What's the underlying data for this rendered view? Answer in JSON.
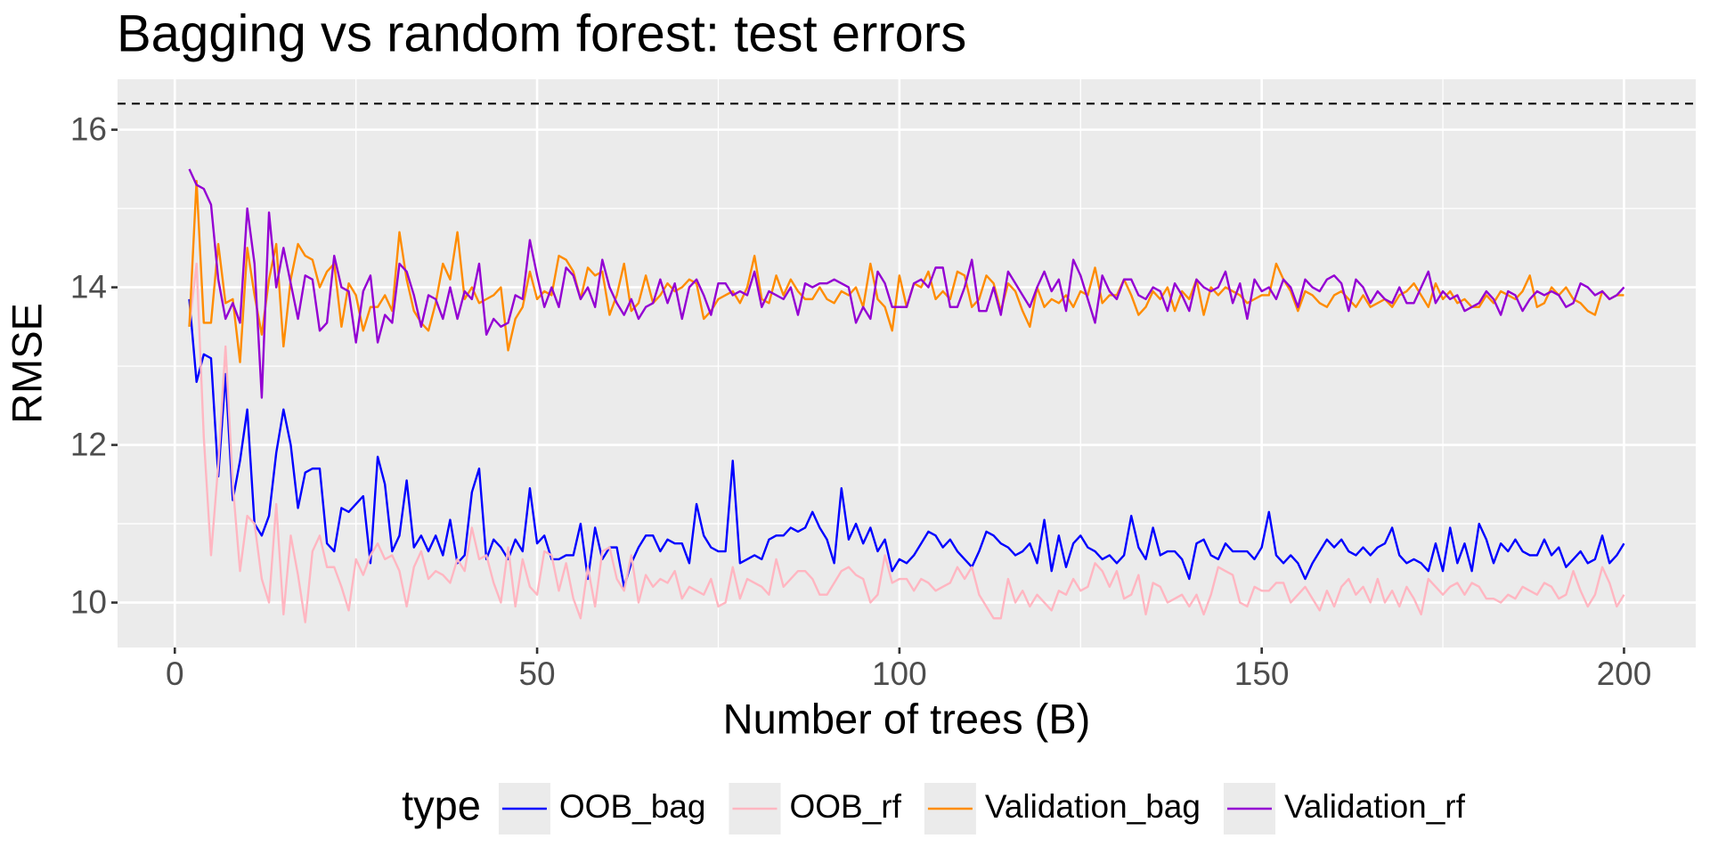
{
  "chart_data": {
    "type": "line",
    "title": "Bagging vs random forest: test errors",
    "xlabel": "Number of trees (B)",
    "ylabel": "RMSE",
    "legend_title": "type",
    "legend_position": "bottom",
    "grid": true,
    "hline": 16.33,
    "xlim": [
      -7.9,
      209.9
    ],
    "ylim": [
      9.43,
      16.64
    ],
    "xticks": [
      0,
      50,
      100,
      150,
      200
    ],
    "yticks": [
      10,
      12,
      14,
      16
    ],
    "x_minor_breaks": [
      25,
      75,
      125,
      175
    ],
    "y_minor_breaks": [
      11,
      13,
      15
    ],
    "x": [
      2,
      3,
      4,
      5,
      6,
      7,
      8,
      9,
      10,
      11,
      12,
      13,
      14,
      15,
      16,
      17,
      18,
      19,
      20,
      21,
      22,
      23,
      24,
      25,
      26,
      27,
      28,
      29,
      30,
      31,
      32,
      33,
      34,
      35,
      36,
      37,
      38,
      39,
      40,
      41,
      42,
      43,
      44,
      45,
      46,
      47,
      48,
      49,
      50,
      51,
      52,
      53,
      54,
      55,
      56,
      57,
      58,
      59,
      60,
      61,
      62,
      63,
      64,
      65,
      66,
      67,
      68,
      69,
      70,
      71,
      72,
      73,
      74,
      75,
      76,
      77,
      78,
      79,
      80,
      81,
      82,
      83,
      84,
      85,
      86,
      87,
      88,
      89,
      90,
      91,
      92,
      93,
      94,
      95,
      96,
      97,
      98,
      99,
      100,
      101,
      102,
      103,
      104,
      105,
      106,
      107,
      108,
      109,
      110,
      111,
      112,
      113,
      114,
      115,
      116,
      117,
      118,
      119,
      120,
      121,
      122,
      123,
      124,
      125,
      126,
      127,
      128,
      129,
      130,
      131,
      132,
      133,
      134,
      135,
      136,
      137,
      138,
      139,
      140,
      141,
      142,
      143,
      144,
      145,
      146,
      147,
      148,
      149,
      150,
      151,
      152,
      153,
      154,
      155,
      156,
      157,
      158,
      159,
      160,
      161,
      162,
      163,
      164,
      165,
      166,
      167,
      168,
      169,
      170,
      171,
      172,
      173,
      174,
      175,
      176,
      177,
      178,
      179,
      180,
      181,
      182,
      183,
      184,
      185,
      186,
      187,
      188,
      189,
      190,
      191,
      192,
      193,
      194,
      195,
      196,
      197,
      198,
      199,
      200
    ],
    "series": [
      {
        "name": "OOB_bag",
        "color": "#0000ff",
        "values": [
          13.85,
          12.8,
          13.15,
          13.1,
          11.6,
          12.9,
          11.3,
          11.8,
          12.45,
          11.0,
          10.85,
          11.1,
          11.9,
          12.45,
          12.0,
          11.2,
          11.65,
          11.7,
          11.7,
          10.75,
          10.65,
          11.2,
          11.15,
          11.25,
          11.35,
          10.5,
          11.85,
          11.5,
          10.65,
          10.85,
          11.55,
          10.7,
          10.85,
          10.65,
          10.85,
          10.6,
          11.05,
          10.5,
          10.6,
          11.4,
          11.7,
          10.55,
          10.8,
          10.7,
          10.55,
          10.8,
          10.65,
          11.45,
          10.75,
          10.85,
          10.55,
          10.55,
          10.6,
          10.6,
          11.0,
          10.3,
          10.95,
          10.55,
          10.7,
          10.7,
          10.2,
          10.5,
          10.7,
          10.85,
          10.85,
          10.65,
          10.8,
          10.75,
          10.75,
          10.5,
          11.25,
          10.85,
          10.7,
          10.65,
          10.65,
          11.8,
          10.5,
          10.55,
          10.6,
          10.55,
          10.8,
          10.85,
          10.85,
          10.95,
          10.9,
          10.95,
          11.15,
          10.95,
          10.8,
          10.5,
          11.45,
          10.8,
          11.0,
          10.75,
          10.95,
          10.65,
          10.8,
          10.4,
          10.55,
          10.5,
          10.6,
          10.75,
          10.9,
          10.85,
          10.7,
          10.8,
          10.65,
          10.55,
          10.45,
          10.65,
          10.9,
          10.85,
          10.75,
          10.7,
          10.6,
          10.65,
          10.75,
          10.5,
          11.05,
          10.4,
          10.85,
          10.45,
          10.75,
          10.85,
          10.7,
          10.65,
          10.55,
          10.6,
          10.5,
          10.6,
          11.1,
          10.7,
          10.55,
          10.95,
          10.6,
          10.65,
          10.65,
          10.55,
          10.3,
          10.75,
          10.8,
          10.6,
          10.55,
          10.75,
          10.65,
          10.65,
          10.65,
          10.55,
          10.7,
          11.15,
          10.6,
          10.5,
          10.6,
          10.5,
          10.3,
          10.5,
          10.65,
          10.8,
          10.7,
          10.8,
          10.65,
          10.6,
          10.7,
          10.6,
          10.7,
          10.75,
          10.95,
          10.6,
          10.5,
          10.55,
          10.5,
          10.4,
          10.75,
          10.4,
          10.95,
          10.5,
          10.75,
          10.4,
          11.0,
          10.8,
          10.5,
          10.75,
          10.65,
          10.8,
          10.65,
          10.6,
          10.6,
          10.8,
          10.6,
          10.7,
          10.45,
          10.55,
          10.65,
          10.5,
          10.55,
          10.85,
          10.5,
          10.6,
          10.75
        ]
      },
      {
        "name": "OOB_rf",
        "color": "#ffb6c1",
        "values": [
          13.5,
          14.3,
          12.1,
          10.6,
          11.75,
          13.25,
          11.5,
          10.4,
          11.1,
          11.0,
          10.3,
          10.0,
          11.25,
          9.85,
          10.85,
          10.35,
          9.75,
          10.65,
          10.85,
          10.45,
          10.45,
          10.2,
          9.9,
          10.55,
          10.35,
          10.6,
          10.75,
          10.55,
          10.6,
          10.4,
          9.95,
          10.45,
          10.65,
          10.3,
          10.4,
          10.35,
          10.25,
          10.55,
          10.4,
          10.95,
          10.55,
          10.6,
          10.25,
          10.0,
          10.7,
          9.95,
          10.55,
          10.2,
          10.1,
          10.65,
          10.6,
          10.15,
          10.5,
          10.05,
          9.8,
          10.45,
          9.95,
          10.65,
          10.7,
          10.3,
          10.15,
          10.6,
          10.0,
          10.35,
          10.2,
          10.3,
          10.25,
          10.4,
          10.05,
          10.2,
          10.15,
          10.1,
          10.3,
          9.95,
          10.0,
          10.45,
          10.05,
          10.3,
          10.25,
          10.2,
          10.1,
          10.55,
          10.2,
          10.3,
          10.4,
          10.4,
          10.3,
          10.1,
          10.1,
          10.25,
          10.4,
          10.45,
          10.35,
          10.3,
          10.0,
          10.1,
          10.6,
          10.25,
          10.3,
          10.3,
          10.15,
          10.3,
          10.25,
          10.15,
          10.2,
          10.25,
          10.45,
          10.3,
          10.45,
          10.1,
          9.95,
          9.8,
          9.8,
          10.3,
          10.0,
          10.15,
          9.95,
          10.1,
          10.0,
          9.9,
          10.15,
          10.1,
          10.3,
          10.15,
          10.2,
          10.5,
          10.4,
          10.2,
          10.4,
          10.05,
          10.1,
          10.35,
          9.85,
          10.25,
          10.2,
          10.0,
          10.05,
          10.1,
          9.95,
          10.1,
          9.85,
          10.1,
          10.45,
          10.4,
          10.35,
          10.0,
          9.95,
          10.2,
          10.15,
          10.15,
          10.25,
          10.25,
          10.0,
          10.1,
          10.2,
          10.05,
          9.9,
          10.15,
          9.95,
          10.2,
          10.3,
          10.1,
          10.2,
          10.0,
          10.3,
          10.0,
          10.15,
          9.95,
          10.2,
          10.05,
          9.85,
          10.3,
          10.2,
          10.1,
          10.2,
          10.25,
          10.1,
          10.25,
          10.2,
          10.05,
          10.05,
          10.0,
          10.1,
          10.05,
          10.2,
          10.15,
          10.1,
          10.25,
          10.2,
          10.05,
          10.1,
          10.4,
          10.15,
          9.95,
          10.1,
          10.45,
          10.25,
          9.95,
          10.1
        ]
      },
      {
        "name": "Validation_bag",
        "color": "#ff8c00",
        "values": [
          13.5,
          15.35,
          13.55,
          13.55,
          14.55,
          13.8,
          13.85,
          13.05,
          14.5,
          13.9,
          13.4,
          14.1,
          14.55,
          13.25,
          14.1,
          14.55,
          14.4,
          14.35,
          14.0,
          14.2,
          14.3,
          13.5,
          14.05,
          13.9,
          13.45,
          13.75,
          13.75,
          13.9,
          13.7,
          14.7,
          14.1,
          13.7,
          13.55,
          13.45,
          13.8,
          14.3,
          14.1,
          14.7,
          13.85,
          14.0,
          13.8,
          13.85,
          13.9,
          14.0,
          13.2,
          13.6,
          13.75,
          14.2,
          13.85,
          13.95,
          13.9,
          14.4,
          14.35,
          14.2,
          13.85,
          14.25,
          14.15,
          14.2,
          13.65,
          13.9,
          14.3,
          13.7,
          13.8,
          14.15,
          13.8,
          13.9,
          14.05,
          13.95,
          14.0,
          14.1,
          14.05,
          13.6,
          13.7,
          13.85,
          13.9,
          13.95,
          13.8,
          14.0,
          14.4,
          13.85,
          13.8,
          14.15,
          13.9,
          14.1,
          13.95,
          13.85,
          13.85,
          14.0,
          13.85,
          13.8,
          13.95,
          13.9,
          14.0,
          13.75,
          14.3,
          13.85,
          13.75,
          13.45,
          14.15,
          13.75,
          14.05,
          14.0,
          14.2,
          13.85,
          13.95,
          13.85,
          14.2,
          14.15,
          13.75,
          13.85,
          14.15,
          14.05,
          13.7,
          14.05,
          13.95,
          13.7,
          13.5,
          14.0,
          13.75,
          13.85,
          13.8,
          13.9,
          13.75,
          13.95,
          13.9,
          14.25,
          13.8,
          13.9,
          13.9,
          14.1,
          13.9,
          13.65,
          13.75,
          13.95,
          13.85,
          14.0,
          13.7,
          13.95,
          13.85,
          14.1,
          13.65,
          14.0,
          13.9,
          14.0,
          13.95,
          13.9,
          13.8,
          13.85,
          13.9,
          13.9,
          14.3,
          14.1,
          13.95,
          13.7,
          13.95,
          13.9,
          13.8,
          13.75,
          13.9,
          13.95,
          13.85,
          13.75,
          13.9,
          13.75,
          13.8,
          13.85,
          13.75,
          13.9,
          13.95,
          14.05,
          13.9,
          13.75,
          14.05,
          13.85,
          13.95,
          13.8,
          13.85,
          13.75,
          13.75,
          13.9,
          13.8,
          13.95,
          13.9,
          13.85,
          13.95,
          14.15,
          13.75,
          13.8,
          14.0,
          13.9,
          14.0,
          13.85,
          13.8,
          13.7,
          13.65,
          13.95,
          13.85,
          13.9,
          13.9
        ]
      },
      {
        "name": "Validation_rf",
        "color": "#9400d3",
        "values": [
          15.5,
          15.3,
          15.25,
          15.05,
          14.1,
          13.6,
          13.8,
          13.55,
          15.0,
          14.3,
          12.6,
          14.95,
          14.0,
          14.5,
          14.05,
          13.6,
          14.15,
          14.1,
          13.45,
          13.55,
          14.4,
          14.0,
          13.95,
          13.3,
          13.95,
          14.15,
          13.3,
          13.65,
          13.55,
          14.3,
          14.2,
          13.9,
          13.5,
          13.9,
          13.85,
          13.6,
          14.0,
          13.6,
          13.95,
          13.85,
          14.3,
          13.4,
          13.6,
          13.5,
          13.55,
          13.9,
          13.85,
          14.6,
          14.15,
          13.75,
          14.0,
          13.75,
          14.25,
          14.15,
          13.85,
          14.0,
          13.75,
          14.35,
          14.0,
          13.8,
          13.65,
          13.85,
          13.6,
          13.75,
          13.8,
          14.1,
          13.8,
          14.05,
          13.6,
          14.0,
          14.1,
          13.9,
          13.65,
          14.05,
          14.05,
          13.9,
          13.95,
          13.9,
          14.2,
          13.75,
          13.95,
          13.9,
          13.85,
          14.0,
          13.65,
          14.05,
          14.0,
          14.05,
          14.05,
          14.1,
          14.05,
          14.0,
          13.55,
          13.75,
          13.6,
          14.2,
          14.05,
          13.75,
          13.75,
          13.75,
          14.05,
          14.1,
          14.0,
          14.25,
          14.25,
          13.75,
          13.75,
          14.0,
          14.35,
          13.7,
          13.7,
          14.0,
          13.65,
          14.2,
          14.05,
          13.9,
          13.75,
          14.0,
          14.2,
          13.95,
          14.1,
          13.7,
          14.35,
          14.15,
          13.85,
          13.55,
          14.15,
          13.95,
          13.85,
          14.1,
          14.1,
          13.9,
          13.85,
          14.0,
          13.95,
          13.7,
          14.05,
          13.9,
          13.7,
          14.1,
          14.0,
          13.95,
          14.0,
          14.2,
          13.8,
          14.05,
          13.6,
          14.1,
          13.95,
          14.0,
          13.85,
          14.1,
          14.0,
          13.75,
          14.1,
          14.0,
          13.95,
          14.1,
          14.15,
          14.05,
          13.7,
          14.1,
          14.0,
          13.8,
          13.95,
          13.85,
          13.8,
          14.0,
          13.8,
          13.8,
          14.0,
          14.2,
          13.8,
          13.95,
          13.85,
          13.9,
          13.7,
          13.75,
          13.8,
          13.95,
          13.85,
          13.65,
          13.95,
          13.9,
          13.7,
          13.85,
          13.95,
          13.9,
          13.95,
          13.9,
          13.75,
          13.8,
          14.05,
          14.0,
          13.9,
          13.95,
          13.85,
          13.9,
          14.0
        ]
      }
    ]
  }
}
